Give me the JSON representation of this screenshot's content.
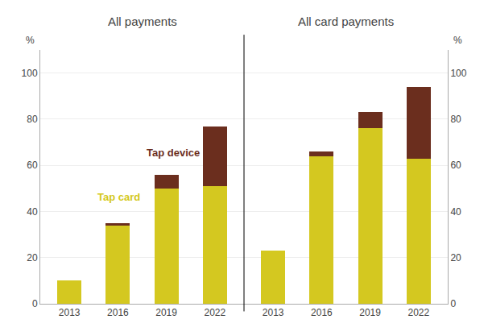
{
  "chart_data": [
    {
      "type": "bar",
      "title": "All payments",
      "ylabel": "%",
      "categories": [
        "2013",
        "2016",
        "2019",
        "2022"
      ],
      "series": [
        {
          "name": "Tap card",
          "color": "#d4c820",
          "values": [
            10,
            34,
            50,
            51
          ]
        },
        {
          "name": "Tap device",
          "color": "#6b2e1e",
          "values": [
            0,
            1,
            6,
            26
          ]
        }
      ],
      "stacked": true,
      "ylim": [
        0,
        110
      ],
      "yticks": [
        0,
        20,
        40,
        60,
        80,
        100
      ],
      "grid": true
    },
    {
      "type": "bar",
      "title": "All card payments",
      "ylabel": "%",
      "categories": [
        "2013",
        "2016",
        "2019",
        "2022"
      ],
      "series": [
        {
          "color": "#d4c820",
          "values": [
            23,
            64,
            76,
            63
          ]
        },
        {
          "color": "#6b2e1e",
          "values": [
            0,
            2,
            7,
            31
          ]
        }
      ],
      "stacked": true,
      "ylim": [
        0,
        110
      ],
      "yticks": [
        0,
        20,
        40,
        60,
        80,
        100
      ],
      "grid": true
    }
  ]
}
